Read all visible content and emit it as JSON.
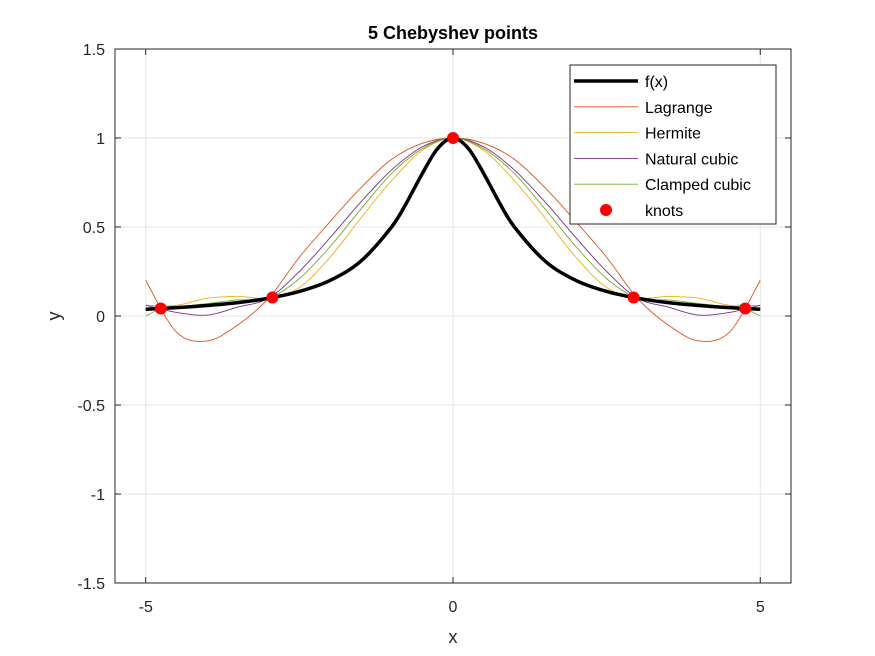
{
  "chart_data": {
    "type": "line",
    "title": "5 Chebyshev points",
    "xlabel": "x",
    "ylabel": "y",
    "xlim": [
      -5.5,
      5.5
    ],
    "ylim": [
      -1.5,
      1.5
    ],
    "xticks": [
      -5,
      0,
      5
    ],
    "xtick_labels": [
      "-5",
      "0",
      "5"
    ],
    "yticks": [
      -1.5,
      -1,
      -0.5,
      0,
      0.5,
      1,
      1.5
    ],
    "ytick_labels": [
      "-1.5",
      "-1",
      "-0.5",
      "0",
      "0.5",
      "1",
      "1.5"
    ],
    "grid": true,
    "legend_position": "top-right",
    "series": [
      {
        "name": "f(x)",
        "color": "#000000",
        "style": "thick-line",
        "x": [
          -5,
          -4.5,
          -4,
          -3.5,
          -3,
          -2.5,
          -2,
          -1.5,
          -1,
          -0.75,
          -0.5,
          -0.25,
          0,
          0.25,
          0.5,
          0.75,
          1,
          1.5,
          2,
          2.5,
          3,
          3.5,
          4,
          4.5,
          5
        ],
        "y": [
          0.038,
          0.047,
          0.059,
          0.075,
          0.1,
          0.138,
          0.2,
          0.308,
          0.5,
          0.64,
          0.8,
          0.941,
          1,
          0.941,
          0.8,
          0.64,
          0.5,
          0.308,
          0.2,
          0.138,
          0.1,
          0.075,
          0.059,
          0.047,
          0.038
        ]
      },
      {
        "name": "Lagrange",
        "color": "#D95319",
        "style": "line",
        "x": [
          -5,
          -4.5,
          -4,
          -3.5,
          -3,
          -2.5,
          -2,
          -1.5,
          -1,
          -0.5,
          0,
          0.5,
          1,
          1.5,
          2,
          2.5,
          3,
          3.5,
          4,
          4.5,
          5
        ],
        "y": [
          0.2,
          -0.09,
          -0.14,
          -0.05,
          0.1,
          0.33,
          0.53,
          0.72,
          0.88,
          0.97,
          1,
          0.97,
          0.88,
          0.72,
          0.53,
          0.33,
          0.1,
          -0.05,
          -0.14,
          -0.09,
          0.2
        ]
      },
      {
        "name": "Hermite",
        "color": "#EDB120",
        "style": "line",
        "x": [
          -5,
          -4.5,
          -4,
          -3.5,
          -3,
          -2.5,
          -2,
          -1.5,
          -1,
          -0.5,
          0,
          0.5,
          1,
          1.5,
          2,
          2.5,
          3,
          3.5,
          4,
          4.5,
          5
        ],
        "y": [
          0.06,
          0.06,
          0.1,
          0.11,
          0.1,
          0.16,
          0.33,
          0.55,
          0.76,
          0.93,
          1,
          0.93,
          0.76,
          0.55,
          0.33,
          0.16,
          0.1,
          0.11,
          0.1,
          0.06,
          0.06
        ]
      },
      {
        "name": "Natural cubic",
        "color": "#7E2F8E",
        "style": "line",
        "x": [
          -5,
          -4.75,
          -4.5,
          -4,
          -3.5,
          -3,
          -2.5,
          -2,
          -1.5,
          -1,
          -0.5,
          0,
          0.5,
          1,
          1.5,
          2,
          2.5,
          3,
          3.5,
          4,
          4.5,
          4.75,
          5
        ],
        "y": [
          0.06,
          0.04,
          0.02,
          0.005,
          0.05,
          0.1,
          0.25,
          0.44,
          0.64,
          0.82,
          0.95,
          1,
          0.95,
          0.82,
          0.64,
          0.44,
          0.25,
          0.1,
          0.05,
          0.005,
          0.02,
          0.04,
          0.06
        ]
      },
      {
        "name": "Clamped cubic",
        "color": "#77AC30",
        "style": "line",
        "x": [
          -5,
          -4.75,
          -4.5,
          -4,
          -3.5,
          -3,
          -2.5,
          -2,
          -1.5,
          -1,
          -0.5,
          0,
          0.5,
          1,
          1.5,
          2,
          2.5,
          3,
          3.5,
          4,
          4.5,
          4.75,
          5
        ],
        "y": [
          0.0,
          0.04,
          0.05,
          0.07,
          0.09,
          0.1,
          0.21,
          0.39,
          0.6,
          0.8,
          0.94,
          1,
          0.94,
          0.8,
          0.6,
          0.39,
          0.21,
          0.1,
          0.09,
          0.07,
          0.05,
          0.04,
          0.0
        ]
      },
      {
        "name": "knots",
        "color": "#FF0000",
        "style": "markers",
        "x": [
          -4.755,
          -2.939,
          0,
          2.939,
          4.755
        ],
        "y": [
          0.042,
          0.104,
          1,
          0.104,
          0.042
        ]
      }
    ]
  }
}
